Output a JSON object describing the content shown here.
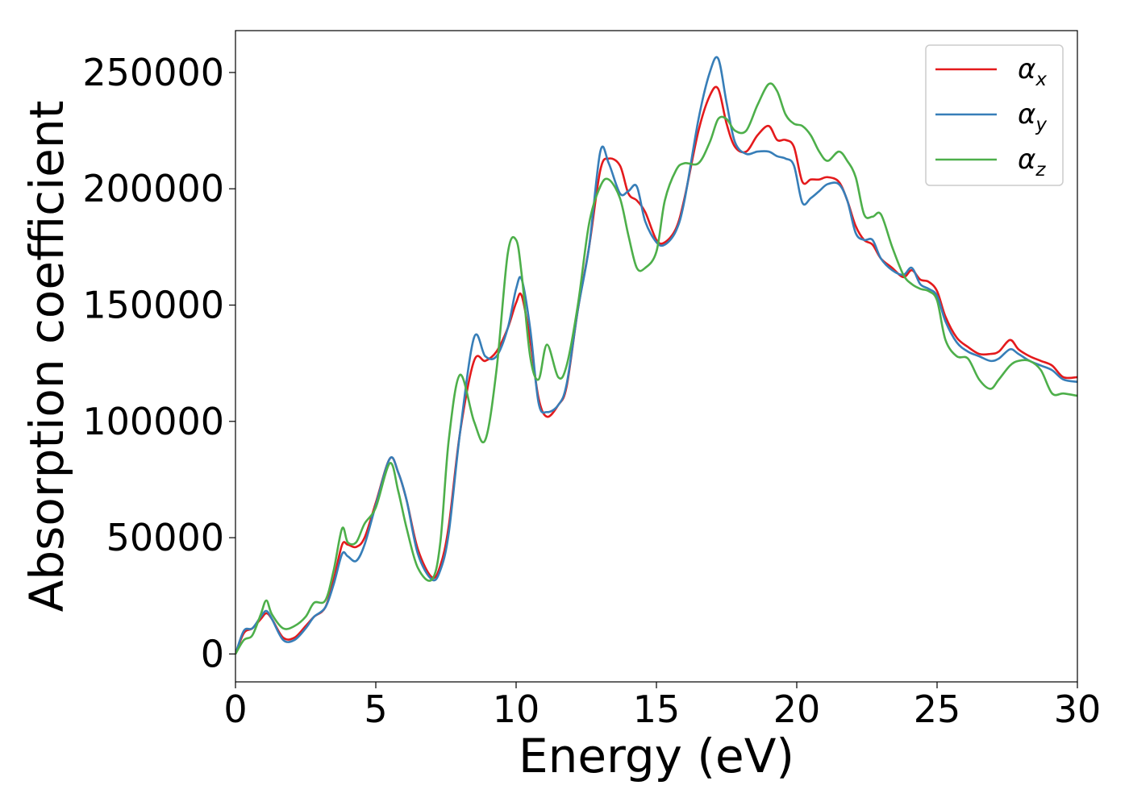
{
  "chart_data": {
    "type": "line",
    "xlabel": "Energy (eV)",
    "ylabel": "Absorption coefficient",
    "xlim": [
      0,
      30
    ],
    "ylim": [
      -12000,
      268000
    ],
    "xticks": [
      0,
      5,
      10,
      15,
      20,
      25,
      30
    ],
    "xtick_labels": [
      "0",
      "5",
      "10",
      "15",
      "20",
      "25",
      "30"
    ],
    "yticks": [
      0,
      50000,
      100000,
      150000,
      200000,
      250000
    ],
    "ytick_labels": [
      "0",
      "50000",
      "100000",
      "150000",
      "200000",
      "250000"
    ],
    "grid": false,
    "legend_position": "top-right",
    "series": [
      {
        "name": "αx",
        "legend_symbol": "α",
        "legend_subscript": "x",
        "color": "#e41a1c",
        "x": [
          0,
          0.3,
          0.6,
          0.9,
          1.1,
          1.3,
          1.7,
          2.1,
          2.5,
          2.8,
          3.2,
          3.5,
          3.8,
          4.0,
          4.3,
          4.6,
          5.0,
          5.5,
          5.8,
          6.1,
          6.5,
          7.0,
          7.3,
          7.6,
          8.0,
          8.5,
          8.9,
          9.3,
          9.7,
          10.0,
          10.2,
          10.5,
          10.8,
          11.1,
          11.5,
          11.8,
          12.2,
          12.6,
          13.0,
          13.3,
          13.7,
          14.0,
          14.3,
          14.6,
          15.0,
          15.3,
          15.7,
          16.0,
          16.5,
          16.9,
          17.2,
          17.5,
          17.8,
          18.2,
          18.6,
          19.0,
          19.3,
          19.6,
          19.9,
          20.2,
          20.5,
          20.8,
          21.1,
          21.5,
          21.8,
          22.1,
          22.4,
          22.7,
          23.0,
          23.4,
          23.8,
          24.1,
          24.4,
          24.7,
          25.0,
          25.3,
          25.7,
          26.1,
          26.5,
          26.9,
          27.2,
          27.6,
          27.9,
          28.3,
          28.7,
          29.1,
          29.5,
          30.0
        ],
        "y": [
          0,
          9000,
          11000,
          15000,
          17500,
          15000,
          7000,
          7000,
          12000,
          16000,
          20000,
          32000,
          47000,
          47000,
          46000,
          50000,
          65000,
          84000,
          78000,
          66000,
          45000,
          33000,
          38000,
          55000,
          95000,
          126000,
          126000,
          130000,
          140000,
          151000,
          154000,
          135000,
          110000,
          102000,
          107000,
          115000,
          148000,
          175000,
          208000,
          213000,
          210000,
          198000,
          195000,
          190000,
          178000,
          177000,
          183000,
          196000,
          225000,
          240000,
          243000,
          228000,
          218000,
          216000,
          223000,
          227000,
          221000,
          221000,
          218000,
          203000,
          204000,
          204000,
          205000,
          203000,
          195000,
          184000,
          178000,
          176000,
          170000,
          166000,
          162000,
          165000,
          161000,
          160000,
          156000,
          145000,
          136000,
          132000,
          129000,
          129000,
          130000,
          135000,
          131000,
          128000,
          126000,
          124000,
          119000,
          119000
        ]
      },
      {
        "name": "αy",
        "legend_symbol": "α",
        "legend_subscript": "y",
        "color": "#377eb8",
        "x": [
          0,
          0.3,
          0.6,
          0.9,
          1.1,
          1.3,
          1.7,
          2.1,
          2.5,
          2.8,
          3.2,
          3.5,
          3.8,
          4.0,
          4.3,
          4.6,
          5.0,
          5.5,
          5.8,
          6.1,
          6.5,
          7.0,
          7.3,
          7.6,
          8.0,
          8.5,
          8.9,
          9.3,
          9.7,
          10.0,
          10.2,
          10.5,
          10.8,
          11.1,
          11.5,
          11.8,
          12.2,
          12.6,
          13.0,
          13.3,
          13.7,
          14.0,
          14.3,
          14.6,
          15.0,
          15.3,
          15.7,
          16.0,
          16.5,
          16.9,
          17.2,
          17.5,
          17.8,
          18.2,
          18.6,
          19.0,
          19.3,
          19.6,
          19.9,
          20.2,
          20.5,
          20.8,
          21.1,
          21.5,
          21.8,
          22.1,
          22.4,
          22.7,
          23.0,
          23.4,
          23.8,
          24.1,
          24.4,
          24.7,
          25.0,
          25.3,
          25.7,
          26.1,
          26.5,
          26.9,
          27.2,
          27.6,
          27.9,
          28.3,
          28.7,
          29.1,
          29.5,
          30.0
        ],
        "y": [
          0,
          10000,
          11000,
          16000,
          18500,
          15000,
          6000,
          6000,
          11000,
          16000,
          20000,
          30000,
          43000,
          42000,
          40000,
          47000,
          64000,
          84000,
          78000,
          66000,
          43000,
          32000,
          36000,
          52000,
          95000,
          136000,
          128000,
          128000,
          140000,
          157000,
          161000,
          140000,
          108000,
          104000,
          107000,
          116000,
          148000,
          175000,
          216000,
          211000,
          198000,
          199000,
          201000,
          186000,
          177000,
          176000,
          182000,
          195000,
          230000,
          250000,
          256000,
          237000,
          220000,
          215000,
          216000,
          216000,
          214000,
          213000,
          210000,
          194000,
          196000,
          199000,
          202000,
          202000,
          195000,
          181000,
          178000,
          178000,
          170000,
          165000,
          163000,
          166000,
          159000,
          157000,
          154000,
          143000,
          134000,
          130000,
          128000,
          126000,
          127000,
          131000,
          129000,
          126000,
          124000,
          122000,
          118000,
          117000
        ]
      },
      {
        "name": "αz",
        "legend_symbol": "α",
        "legend_subscript": "z",
        "color": "#4daf4a",
        "x": [
          0,
          0.3,
          0.6,
          0.9,
          1.1,
          1.3,
          1.7,
          2.1,
          2.5,
          2.8,
          3.2,
          3.5,
          3.8,
          4.0,
          4.3,
          4.6,
          5.0,
          5.5,
          5.8,
          6.1,
          6.5,
          7.0,
          7.3,
          7.6,
          8.0,
          8.5,
          8.9,
          9.3,
          9.7,
          10.0,
          10.2,
          10.5,
          10.8,
          11.1,
          11.5,
          11.8,
          12.2,
          12.6,
          13.0,
          13.3,
          13.7,
          14.0,
          14.3,
          14.6,
          15.0,
          15.3,
          15.7,
          16.0,
          16.5,
          16.9,
          17.2,
          17.5,
          17.8,
          18.2,
          18.6,
          19.0,
          19.3,
          19.6,
          19.9,
          20.2,
          20.5,
          20.8,
          21.1,
          21.5,
          21.8,
          22.1,
          22.4,
          22.7,
          23.0,
          23.4,
          23.8,
          24.1,
          24.4,
          24.7,
          25.0,
          25.3,
          25.7,
          26.1,
          26.5,
          26.9,
          27.2,
          27.6,
          27.9,
          28.3,
          28.7,
          29.1,
          29.5,
          30.0
        ],
        "y": [
          0,
          6000,
          8000,
          17000,
          23000,
          17000,
          11000,
          12000,
          16000,
          22000,
          23000,
          36000,
          54000,
          48000,
          48000,
          56000,
          63000,
          82000,
          70000,
          54000,
          37000,
          32000,
          48000,
          92000,
          120000,
          100000,
          92000,
          122000,
          172000,
          178000,
          163000,
          128000,
          118000,
          133000,
          119000,
          124000,
          150000,
          185000,
          201000,
          204000,
          196000,
          180000,
          166000,
          166000,
          173000,
          195000,
          208000,
          211000,
          211000,
          220000,
          230000,
          230000,
          225000,
          225000,
          236000,
          245000,
          242000,
          232000,
          228000,
          227000,
          223000,
          216000,
          212000,
          216000,
          212000,
          205000,
          189000,
          188000,
          189000,
          175000,
          163000,
          159000,
          157000,
          156000,
          152000,
          135000,
          128000,
          127000,
          118000,
          114000,
          118000,
          124000,
          126000,
          126000,
          122000,
          112000,
          112000,
          111000
        ]
      }
    ]
  }
}
